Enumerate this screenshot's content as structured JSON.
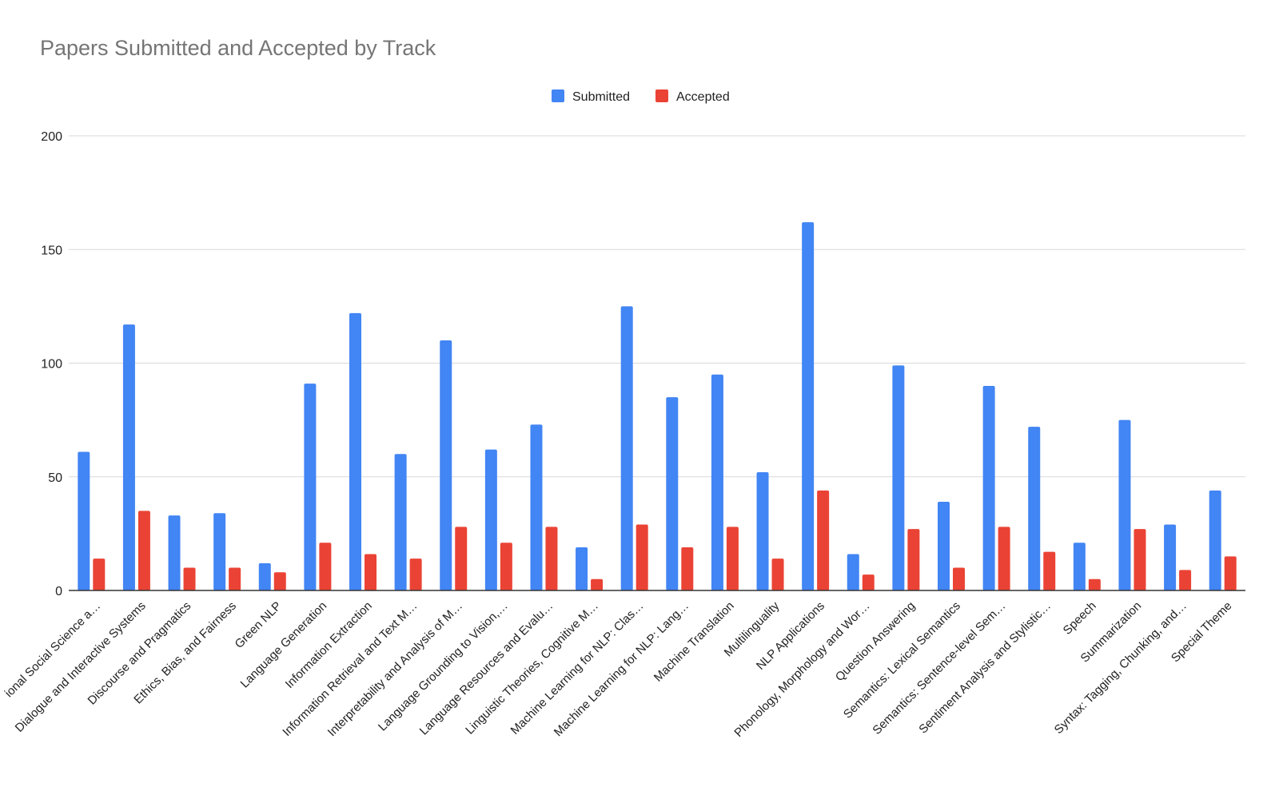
{
  "chart_data": {
    "type": "bar",
    "title": "Papers Submitted and Accepted by Track",
    "xlabel": "",
    "ylabel": "",
    "ylim": [
      0,
      200
    ],
    "yticks": [
      0,
      50,
      100,
      150,
      200
    ],
    "grid": true,
    "legend_position": "top-center",
    "categories": [
      "ional Social Science a…",
      "Dialogue and Interactive Systems",
      "Discourse and Pragmatics",
      "Ethics, Bias, and Fairness",
      "Green NLP",
      "Language Generation",
      "Information Extraction",
      "Information Retrieval and Text M…",
      "Interpretability and Analysis of M…",
      "Language Grounding to Vision,…",
      "Language Resources and Evalu…",
      "Linguistic Theories, Cognitive M…",
      "Machine Learning for NLP: Clas…",
      "Machine Learning for NLP: Lang…",
      "Machine Translation",
      "Multilinguality",
      "NLP Applications",
      "Phonology, Morphology and Wor…",
      "Question Answering",
      "Semantics: Lexical Semantics",
      "Semantics: Sentence-level Sem…",
      "Sentiment Analysis and Stylistic…",
      "Speech",
      "Summarization",
      "Syntax: Tagging, Chunking, and…",
      "Special Theme"
    ],
    "series": [
      {
        "name": "Submitted",
        "color": "#4285F4",
        "values": [
          61,
          117,
          33,
          34,
          12,
          91,
          122,
          60,
          110,
          62,
          73,
          19,
          125,
          85,
          95,
          52,
          162,
          16,
          99,
          39,
          90,
          72,
          21,
          75,
          29,
          44
        ]
      },
      {
        "name": "Accepted",
        "color": "#EA4335",
        "values": [
          14,
          35,
          10,
          10,
          8,
          21,
          16,
          14,
          28,
          21,
          28,
          5,
          29,
          19,
          28,
          14,
          44,
          7,
          27,
          10,
          28,
          17,
          5,
          27,
          9,
          15
        ]
      }
    ]
  }
}
